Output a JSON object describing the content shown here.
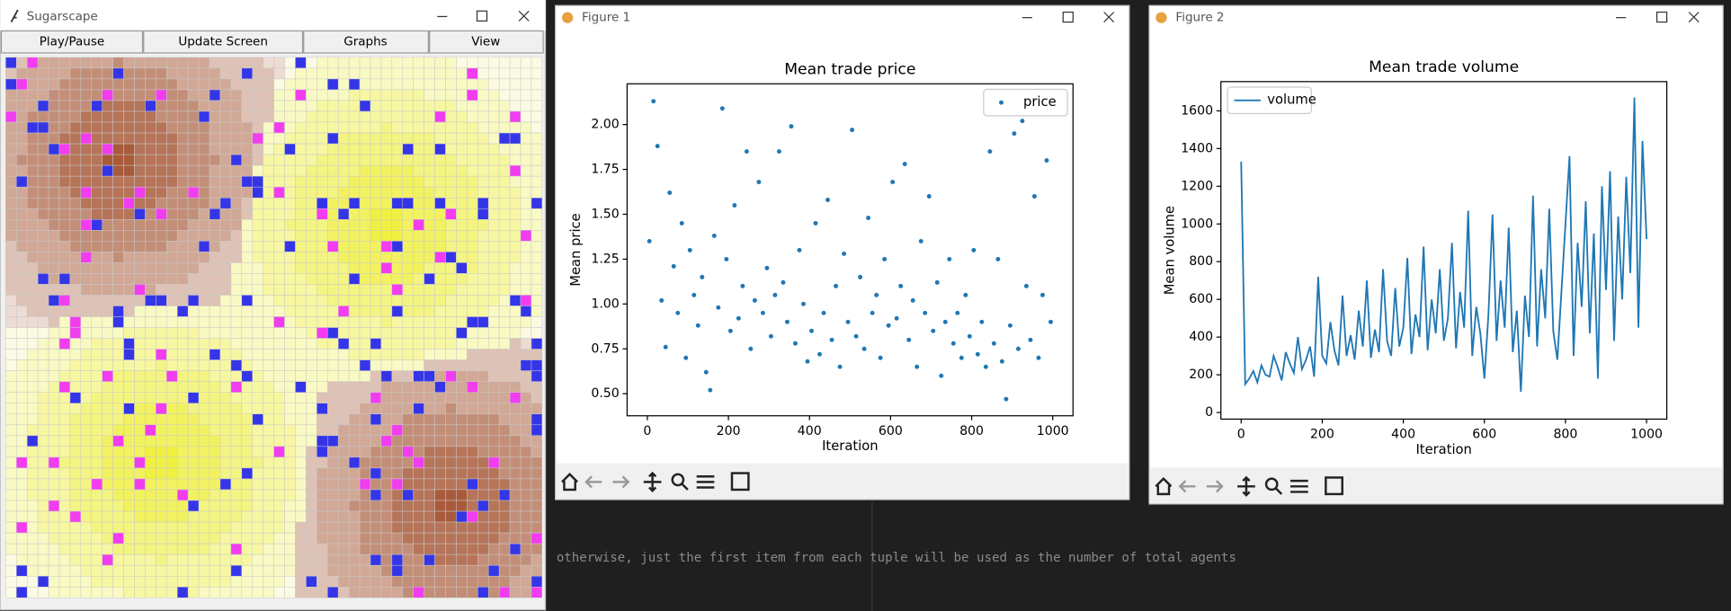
{
  "windows": {
    "sugarscape": {
      "title": "Sugarscape",
      "buttons": [
        "Play/Pause",
        "Update Screen",
        "Graphs",
        "View"
      ]
    },
    "figure1": {
      "title": "Figure 1"
    },
    "figure2": {
      "title": "Figure 2"
    }
  },
  "editor": {
    "lines": [
      "otherwise, just the first item from each tuple will be used as the number of total agents"
    ]
  },
  "chart_data": [
    {
      "type": "scatter",
      "title": "Mean trade price",
      "x_label": "Iteration",
      "y_label": "Mean price",
      "legend": "upper right",
      "xlim": [
        -50,
        1050
      ],
      "ylim": [
        0.377,
        2.227
      ],
      "xticks": [
        0,
        200,
        400,
        600,
        800,
        1000
      ],
      "yticks": [
        {
          "value": 0.5,
          "label": "0.50"
        },
        {
          "value": 0.75,
          "label": "0.75"
        },
        {
          "value": 1.0,
          "label": "1.00"
        },
        {
          "value": 1.25,
          "label": "1.25"
        },
        {
          "value": 1.5,
          "label": "1.50"
        },
        {
          "value": 1.75,
          "label": "1.75"
        },
        {
          "value": 2.0,
          "label": "2.00"
        }
      ],
      "series": [
        {
          "name": "price",
          "color": "#1f77b4",
          "x": [
            5,
            15,
            25,
            35,
            45,
            55,
            65,
            75,
            85,
            95,
            105,
            115,
            125,
            135,
            145,
            155,
            165,
            175,
            185,
            195,
            205,
            215,
            225,
            235,
            245,
            255,
            265,
            275,
            285,
            295,
            305,
            315,
            325,
            335,
            345,
            355,
            365,
            375,
            385,
            395,
            405,
            415,
            425,
            435,
            445,
            455,
            465,
            475,
            485,
            495,
            505,
            515,
            525,
            535,
            545,
            555,
            565,
            575,
            585,
            595,
            605,
            615,
            625,
            635,
            645,
            655,
            665,
            675,
            685,
            695,
            705,
            715,
            725,
            735,
            745,
            755,
            765,
            775,
            785,
            795,
            805,
            815,
            825,
            835,
            845,
            855,
            865,
            875,
            885,
            895,
            905,
            915,
            925,
            935,
            945,
            955,
            965,
            975,
            985,
            995
          ],
          "values": [
            1.35,
            2.13,
            1.88,
            1.02,
            0.76,
            1.62,
            1.21,
            0.95,
            1.45,
            0.7,
            1.3,
            1.05,
            0.88,
            1.15,
            0.62,
            0.52,
            1.38,
            0.98,
            2.09,
            1.25,
            0.85,
            1.55,
            0.92,
            1.1,
            1.85,
            0.75,
            1.02,
            1.68,
            0.95,
            1.2,
            0.82,
            1.05,
            1.85,
            1.12,
            0.9,
            1.99,
            0.78,
            1.3,
            1.0,
            0.68,
            0.85,
            1.45,
            0.72,
            0.95,
            1.58,
            0.8,
            1.1,
            0.65,
            1.28,
            0.9,
            1.97,
            0.82,
            1.15,
            0.75,
            1.48,
            0.95,
            1.05,
            0.7,
            1.25,
            0.88,
            1.68,
            0.92,
            1.1,
            1.78,
            0.8,
            1.02,
            0.65,
            1.35,
            0.95,
            1.6,
            0.85,
            1.12,
            0.6,
            0.9,
            1.25,
            0.78,
            0.95,
            0.7,
            1.05,
            0.82,
            1.3,
            0.72,
            0.9,
            0.65,
            1.85,
            0.78,
            1.25,
            0.68,
            0.47,
            0.88,
            1.95,
            0.75,
            2.02,
            1.1,
            0.8,
            1.6,
            0.7,
            1.05,
            1.8,
            0.9
          ]
        }
      ]
    },
    {
      "type": "line",
      "title": "Mean trade volume",
      "x_label": "Iteration",
      "y_label": "Mean volume",
      "legend": "upper left",
      "xlim": [
        -50,
        1050
      ],
      "ylim": [
        -35,
        1755
      ],
      "xticks": [
        0,
        200,
        400,
        600,
        800,
        1000
      ],
      "yticks": [
        0,
        200,
        400,
        600,
        800,
        1000,
        1200,
        1400,
        1600
      ],
      "series": [
        {
          "name": "volume",
          "color": "#1f77b4",
          "x": [
            0,
            10,
            20,
            30,
            40,
            50,
            60,
            70,
            80,
            90,
            100,
            110,
            120,
            130,
            140,
            150,
            160,
            170,
            180,
            190,
            200,
            210,
            220,
            230,
            240,
            250,
            260,
            270,
            280,
            290,
            300,
            310,
            320,
            330,
            340,
            350,
            360,
            370,
            380,
            390,
            400,
            410,
            420,
            430,
            440,
            450,
            460,
            470,
            480,
            490,
            500,
            510,
            520,
            530,
            540,
            550,
            560,
            570,
            580,
            590,
            600,
            610,
            620,
            630,
            640,
            650,
            660,
            670,
            680,
            690,
            700,
            710,
            720,
            730,
            740,
            750,
            760,
            770,
            780,
            790,
            800,
            810,
            820,
            830,
            840,
            850,
            860,
            870,
            880,
            890,
            900,
            910,
            920,
            930,
            940,
            950,
            960,
            970,
            980,
            990,
            1000
          ],
          "values": [
            1330,
            150,
            180,
            220,
            160,
            250,
            200,
            190,
            300,
            240,
            170,
            320,
            260,
            210,
            400,
            230,
            280,
            350,
            190,
            720,
            300,
            260,
            480,
            330,
            250,
            620,
            300,
            410,
            280,
            540,
            350,
            700,
            290,
            440,
            320,
            760,
            380,
            300,
            660,
            350,
            450,
            820,
            310,
            520,
            400,
            880,
            330,
            600,
            420,
            760,
            380,
            500,
            900,
            340,
            640,
            450,
            1070,
            300,
            560,
            420,
            180,
            520,
            1050,
            380,
            700,
            450,
            980,
            320,
            540,
            110,
            620,
            400,
            1150,
            350,
            760,
            500,
            1080,
            430,
            280,
            640,
            1000,
            1360,
            300,
            900,
            560,
            1120,
            420,
            950,
            180,
            1200,
            650,
            1280,
            380,
            1040,
            600,
            1250,
            740,
            1670,
            450,
            1440,
            920
          ]
        }
      ]
    }
  ]
}
